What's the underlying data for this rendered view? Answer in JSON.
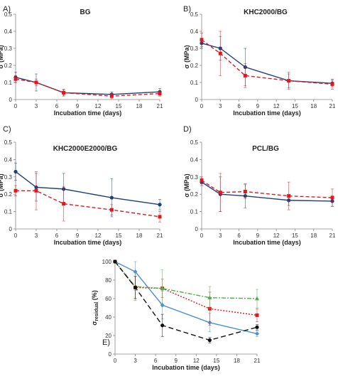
{
  "chart_data": [
    {
      "panel": "A)",
      "title": "BG",
      "type": "line",
      "xlabel": "Incubation time (days)",
      "ylabel": "σ (MPa)",
      "ylim": [
        0,
        0.5
      ],
      "xlim": [
        0,
        21
      ],
      "x_ticks": [
        "0",
        "3",
        "6",
        "9",
        "12",
        "15",
        "18",
        "21"
      ],
      "y_ticks": [
        "0",
        "0.1",
        "0.2",
        "0.3",
        "0.4",
        "0.5"
      ],
      "series": [
        {
          "color": "#1f3f7a",
          "dash": "",
          "marker": "dot",
          "x": [
            0,
            3,
            7,
            14,
            21
          ],
          "y": [
            0.13,
            0.1,
            0.04,
            0.03,
            0.045
          ],
          "err": [
            0.03,
            0.05,
            0.02,
            0.015,
            0.02
          ]
        },
        {
          "color": "#e3171b",
          "dash": "5,3",
          "marker": "square",
          "x": [
            0,
            3,
            7,
            14,
            21
          ],
          "y": [
            0.12,
            0.1,
            0.04,
            0.02,
            0.035
          ],
          "err": [
            0.02,
            0.02,
            0.015,
            0.015,
            0.015
          ]
        }
      ]
    },
    {
      "panel": "B)",
      "title": "KHC2000/BG",
      "type": "line",
      "xlabel": "Incubation time (days)",
      "ylabel": "σ (MPa)",
      "ylim": [
        0,
        0.5
      ],
      "xlim": [
        0,
        21
      ],
      "x_ticks": [
        "0",
        "3",
        "6",
        "9",
        "12",
        "15",
        "18",
        "21"
      ],
      "y_ticks": [
        "0",
        "0.1",
        "0.2",
        "0.3",
        "0.4",
        "0.5"
      ],
      "series": [
        {
          "color": "#1f3f7a",
          "dash": "",
          "marker": "dot",
          "x": [
            0,
            3,
            7,
            14,
            21
          ],
          "y": [
            0.33,
            0.3,
            0.19,
            0.11,
            0.095
          ],
          "err": [
            0.03,
            0.07,
            0.11,
            0.04,
            0.02
          ]
        },
        {
          "color": "#e3171b",
          "dash": "5,3",
          "marker": "square",
          "x": [
            0,
            3,
            7,
            14,
            21
          ],
          "y": [
            0.35,
            0.27,
            0.14,
            0.11,
            0.09
          ],
          "err": [
            0.04,
            0.13,
            0.07,
            0.05,
            0.03
          ]
        }
      ]
    },
    {
      "panel": "C)",
      "title": "KHC2000E2000/BG",
      "type": "line",
      "xlabel": "Incubation time (days)",
      "ylabel": "σ (MPa)",
      "ylim": [
        0,
        0.5
      ],
      "xlim": [
        0,
        21
      ],
      "x_ticks": [
        "0",
        "3",
        "6",
        "9",
        "12",
        "15",
        "18",
        "21"
      ],
      "y_ticks": [
        "0",
        "0.1",
        "0.2",
        "0.3",
        "0.4",
        "0.5"
      ],
      "series": [
        {
          "color": "#1f3f7a",
          "dash": "",
          "marker": "dot",
          "x": [
            0,
            3,
            7,
            14,
            21
          ],
          "y": [
            0.33,
            0.24,
            0.23,
            0.18,
            0.14
          ],
          "err": [
            0.05,
            0.08,
            0.09,
            0.11,
            0.03
          ]
        },
        {
          "color": "#e3171b",
          "dash": "5,3",
          "marker": "square",
          "x": [
            0,
            3,
            7,
            14,
            21
          ],
          "y": [
            0.22,
            0.22,
            0.145,
            0.11,
            0.07
          ],
          "err": [
            0.03,
            0.11,
            0.1,
            0.03,
            0.03
          ]
        }
      ]
    },
    {
      "panel": "D)",
      "title": "PCL/BG",
      "type": "line",
      "xlabel": "Incubation time (days)",
      "ylabel": "σ (MPa)",
      "ylim": [
        0,
        0.5
      ],
      "xlim": [
        0,
        21
      ],
      "x_ticks": [
        "0",
        "3",
        "6",
        "9",
        "12",
        "15",
        "18",
        "21"
      ],
      "y_ticks": [
        "0",
        "0.1",
        "0.2",
        "0.3",
        "0.4",
        "0.5"
      ],
      "series": [
        {
          "color": "#1f3f7a",
          "dash": "",
          "marker": "dot",
          "x": [
            0,
            3,
            7,
            14,
            21
          ],
          "y": [
            0.27,
            0.2,
            0.19,
            0.165,
            0.16
          ],
          "err": [
            0.02,
            0.1,
            0.07,
            0.03,
            0.03
          ]
        },
        {
          "color": "#e3171b",
          "dash": "5,3",
          "marker": "square",
          "x": [
            0,
            3,
            7,
            14,
            21
          ],
          "y": [
            0.28,
            0.21,
            0.215,
            0.19,
            0.18
          ],
          "err": [
            0.02,
            0.11,
            0.04,
            0.08,
            0.05
          ]
        }
      ]
    },
    {
      "panel": "E)",
      "title": "",
      "type": "line",
      "xlabel": "Incubation time (days)",
      "ylabel": "σ",
      "ylabel_sub": "residual",
      "ylabel_suffix": " (%)",
      "ylim": [
        0,
        100
      ],
      "xlim": [
        0,
        21
      ],
      "x_ticks": [
        "0",
        "3",
        "6",
        "9",
        "12",
        "15",
        "18",
        "21"
      ],
      "y_ticks": [
        "0",
        "20",
        "40",
        "60",
        "80",
        "100"
      ],
      "series": [
        {
          "color": "#4a90d9",
          "dash": "",
          "marker": "diamond",
          "x": [
            0,
            3,
            7,
            14,
            21
          ],
          "y": [
            100,
            89,
            53,
            34,
            22
          ],
          "err": [
            0,
            20,
            15,
            10,
            3
          ]
        },
        {
          "color": "#e3171b",
          "dash": "2,2",
          "marker": "square",
          "x": [
            0,
            3,
            7,
            14,
            21
          ],
          "y": [
            100,
            72,
            71,
            49,
            42
          ],
          "err": [
            0,
            12,
            10,
            18,
            7
          ]
        },
        {
          "color": "#4daf4a",
          "dash": "6,2,2,2",
          "marker": "triangle",
          "x": [
            0,
            3,
            7,
            14,
            21
          ],
          "y": [
            100,
            73,
            71,
            61,
            60
          ],
          "err": [
            0,
            15,
            20,
            12,
            10
          ]
        },
        {
          "color": "#111111",
          "dash": "7,4",
          "marker": "dot",
          "x": [
            0,
            3,
            7,
            14,
            21
          ],
          "y": [
            100,
            72,
            31,
            15,
            29
          ],
          "err": [
            0,
            12,
            12,
            3,
            3
          ]
        }
      ]
    }
  ]
}
